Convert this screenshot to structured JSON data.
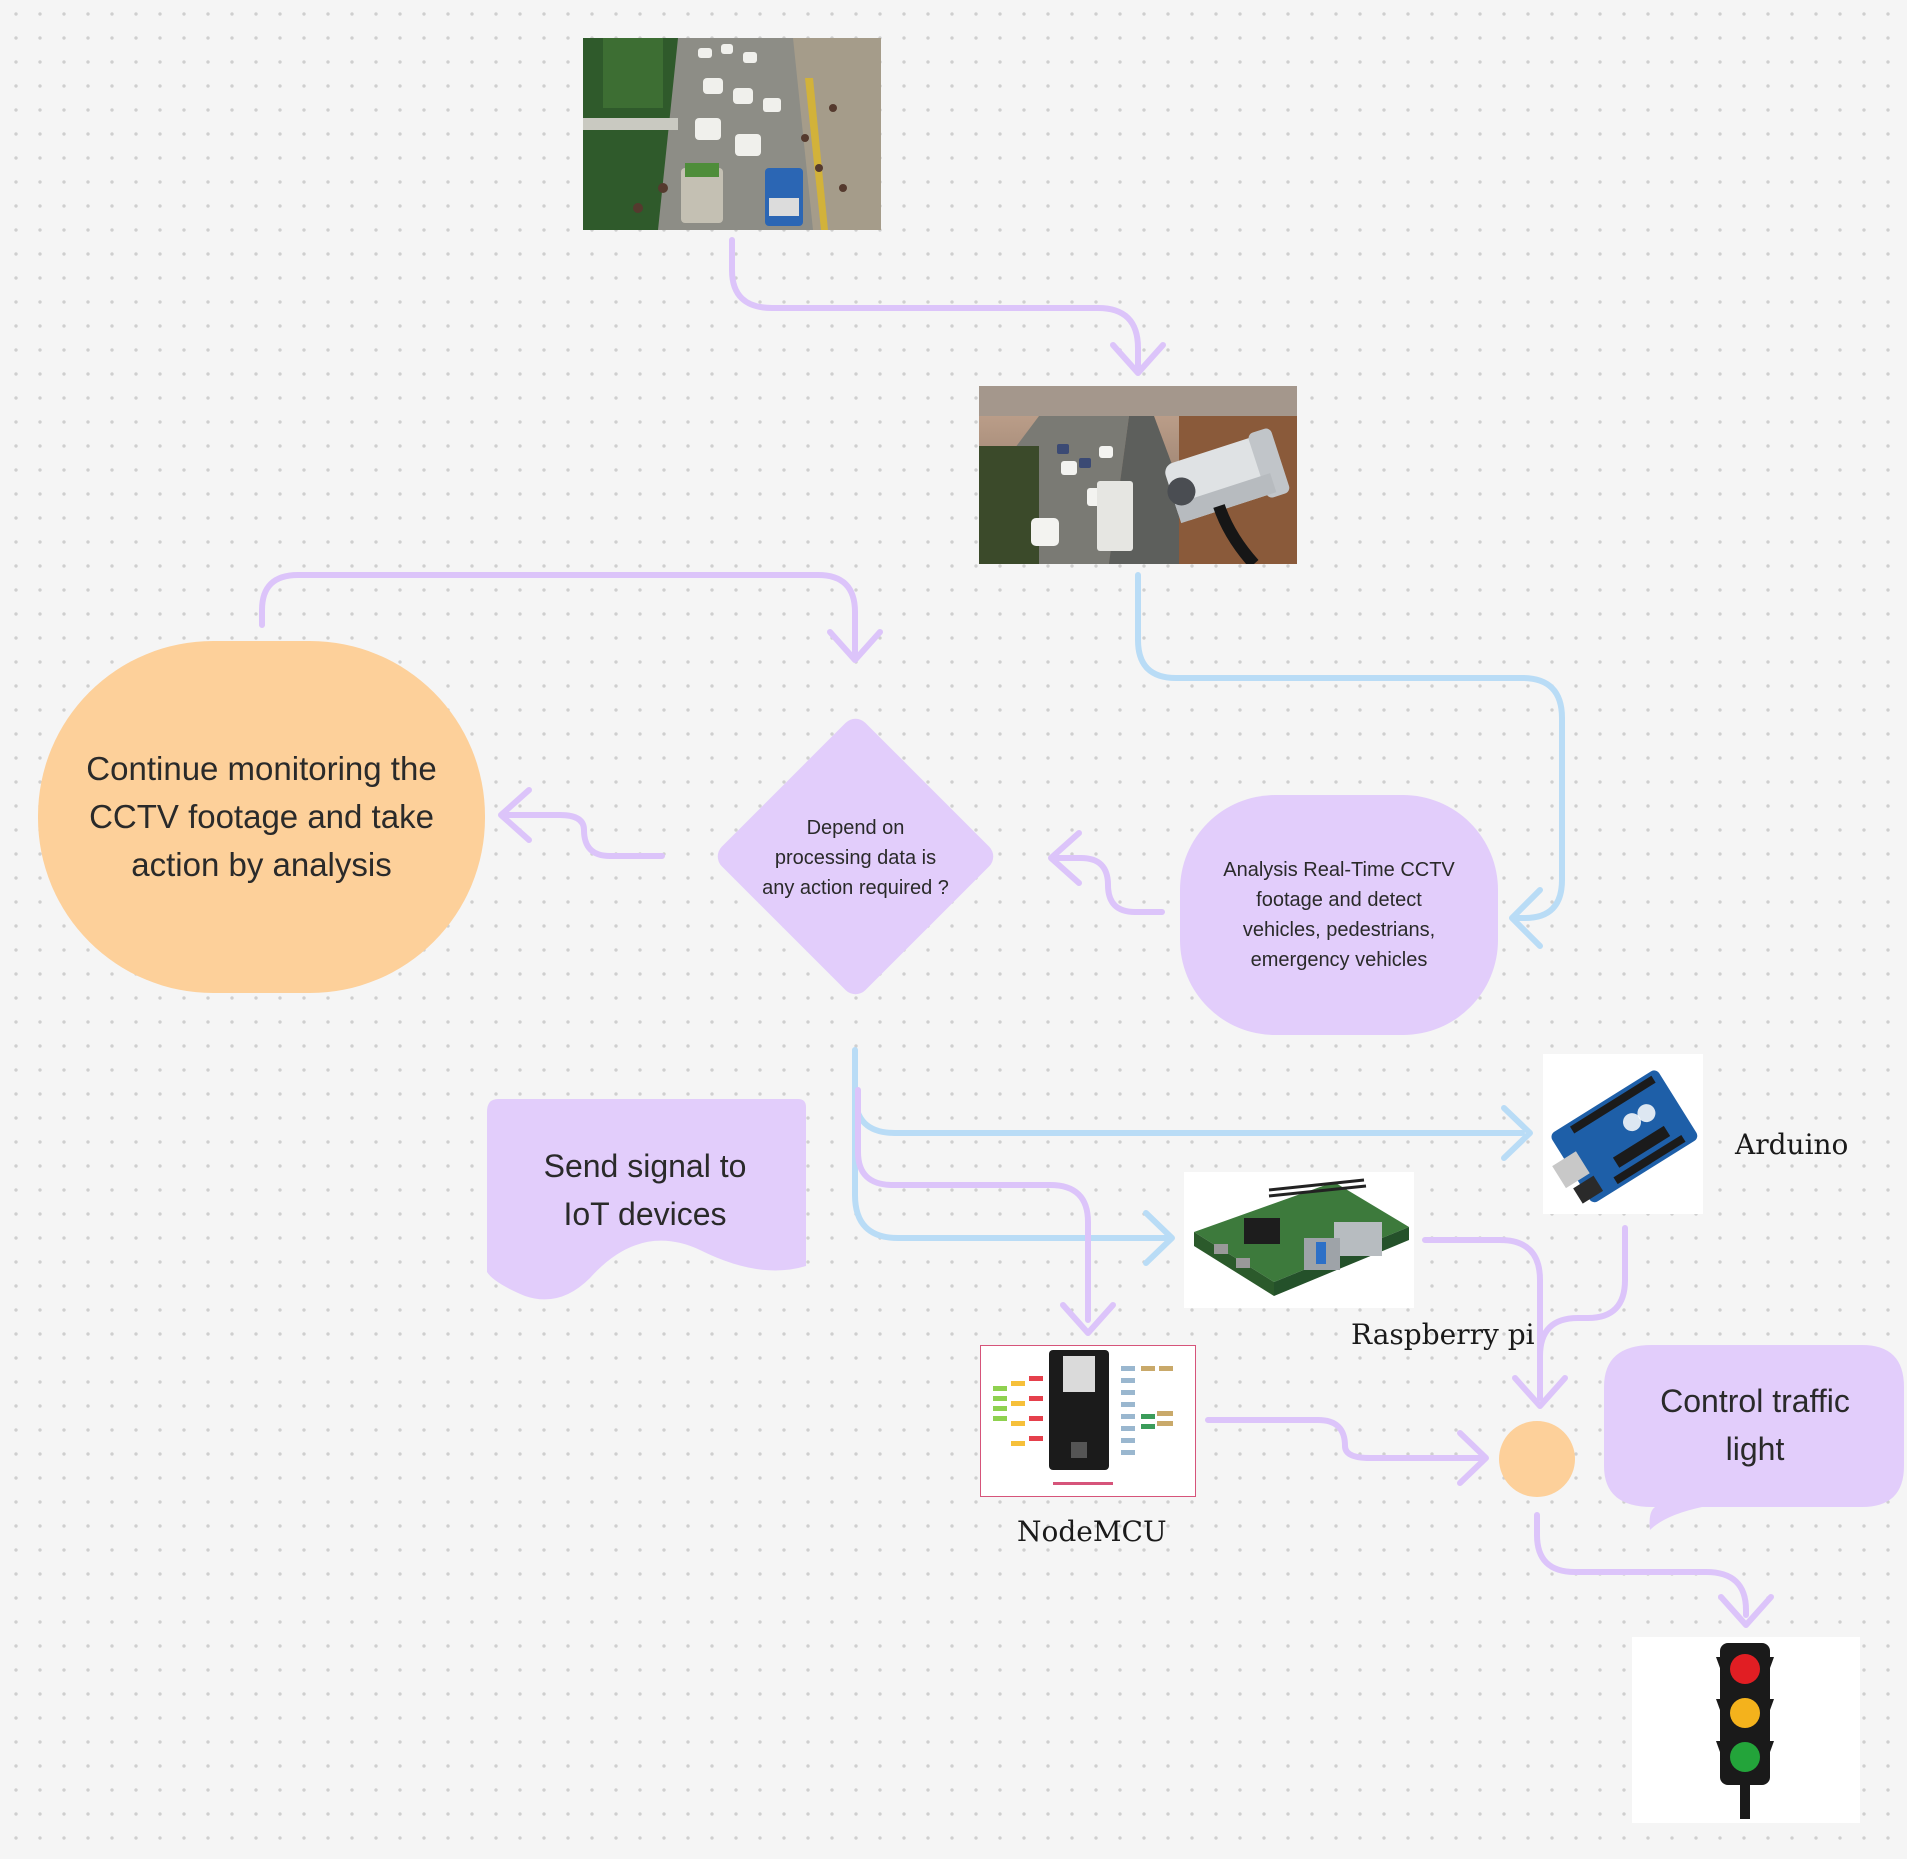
{
  "colors": {
    "background": "#f5f5f5",
    "purple": "#e2cdfb",
    "purple_arrow": "#dcc4fa",
    "blue_arrow": "#b9dcf6",
    "orange": "#fdd09a"
  },
  "nodes": {
    "continue_monitoring": "Continue monitoring the CCTV footage and take action by analysis",
    "decision": "Depend on processing data is any action required ?",
    "analysis": "Analysis Real-Time CCTV footage and detect vehicles, pedestrians, emergency vehicles",
    "send_signal": "Send signal to IoT devices",
    "control_traffic": "Control traffic light"
  },
  "device_labels": {
    "arduino": "Arduino",
    "raspberry": "Raspberry pi",
    "nodemcu": "NodeMCU"
  },
  "images": {
    "traffic_photo": "traffic-jam-photo",
    "cctv_photo": "cctv-camera-highway-photo",
    "arduino_photo": "arduino-board-photo",
    "raspberry_photo": "raspberry-pi-board-photo",
    "nodemcu_photo": "nodemcu-pinout-photo",
    "traffic_light": "traffic-light-icon"
  }
}
